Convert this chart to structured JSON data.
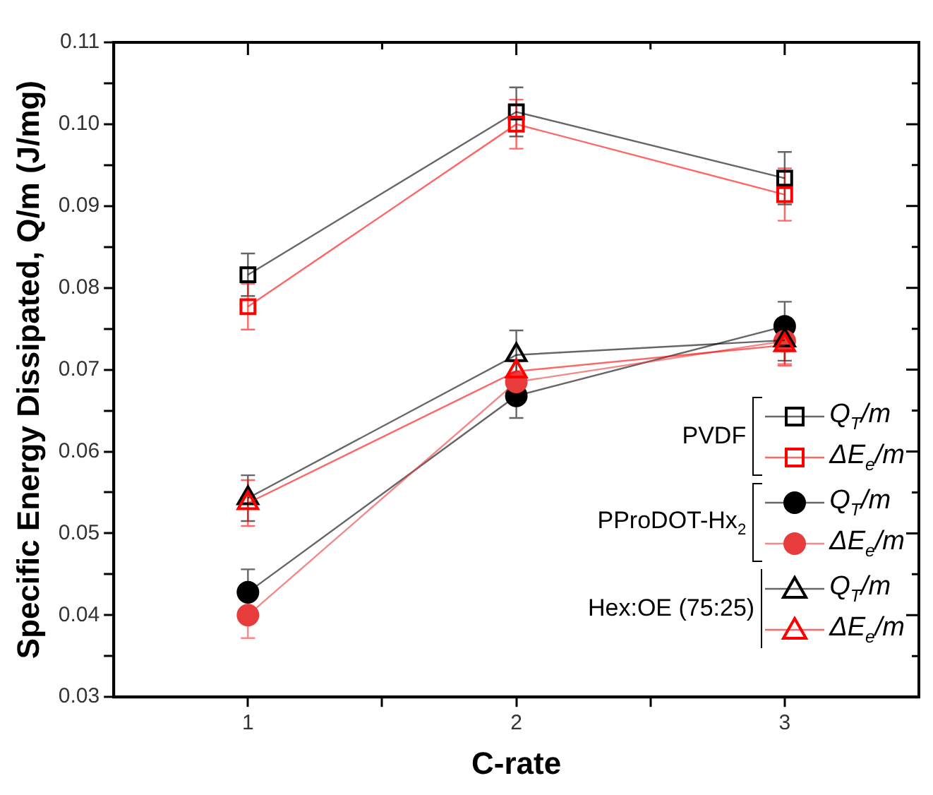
{
  "chart_data": {
    "type": "line",
    "xlabel": "C-rate",
    "ylabel": "Specific Energy Dissipated, Q/m (J/mg)",
    "x": [
      1,
      2,
      3
    ],
    "xlim": [
      0.5,
      3.5
    ],
    "xticks": [
      1,
      {
        "value": 1.5,
        "label": null
      },
      2,
      {
        "value": 2.5,
        "label": null
      },
      3
    ],
    "ylim": [
      0.03,
      0.11
    ],
    "yticks": [
      {
        "value": 0.03,
        "label": "0.03"
      },
      {
        "value": 0.035,
        "label": null
      },
      {
        "value": 0.04,
        "label": "0.04"
      },
      {
        "value": 0.045,
        "label": null
      },
      {
        "value": 0.05,
        "label": "0.05"
      },
      {
        "value": 0.055,
        "label": null
      },
      {
        "value": 0.06,
        "label": "0.06"
      },
      {
        "value": 0.065,
        "label": null
      },
      {
        "value": 0.07,
        "label": "0.07"
      },
      {
        "value": 0.075,
        "label": null
      },
      {
        "value": 0.08,
        "label": "0.08"
      },
      {
        "value": 0.085,
        "label": null
      },
      {
        "value": 0.09,
        "label": "0.09"
      },
      {
        "value": 0.095,
        "label": null
      },
      {
        "value": 0.1,
        "label": "0.10"
      },
      {
        "value": 0.105,
        "label": null
      },
      {
        "value": 0.11,
        "label": "0.11"
      }
    ],
    "grid": false,
    "legend": "bottom right",
    "line_style": "solid",
    "annotations": [
      "PVDF",
      "PProDOT-Hx$_{2}$",
      "Hex:OE (75:25)"
    ],
    "series": [
      {
        "name": "Q$_{T}$/m",
        "color": "#000000",
        "marker": "square",
        "values": [
          0.0816,
          0.1015,
          0.0934
        ],
        "errors": [
          0.0026,
          0.003,
          0.0032
        ]
      },
      {
        "name": "ΔE$_{e}$/m",
        "color": "#ff0000",
        "marker": "square",
        "values": [
          0.0777,
          0.1,
          0.0914
        ],
        "errors": [
          0.0028,
          0.003,
          0.0032
        ]
      },
      {
        "name": "Q$_{T}$/m",
        "color": "#000000",
        "marker": "circle",
        "values": [
          0.0428,
          0.0668,
          0.0753
        ],
        "errors": [
          0.0028,
          0.0027,
          0.003
        ]
      },
      {
        "name": "ΔE$_{e}$/m",
        "color": "#e83c3c",
        "marker": "circle",
        "values": [
          0.04,
          0.0685,
          0.0735
        ],
        "errors": [
          0.0028,
          0.0025,
          0.0028
        ]
      },
      {
        "name": "Q$_{T}$/m",
        "color": "#000000",
        "marker": "triangle",
        "values": [
          0.0543,
          0.0718,
          0.0736
        ],
        "errors": [
          0.0028,
          0.003,
          0.0025
        ]
      },
      {
        "name": "ΔE$_{e}$/m",
        "color": "#ff0000",
        "marker": "triangle",
        "values": [
          0.0537,
          0.0698,
          0.073
        ],
        "errors": [
          0.0028,
          null,
          0.0025
        ]
      }
    ]
  }
}
